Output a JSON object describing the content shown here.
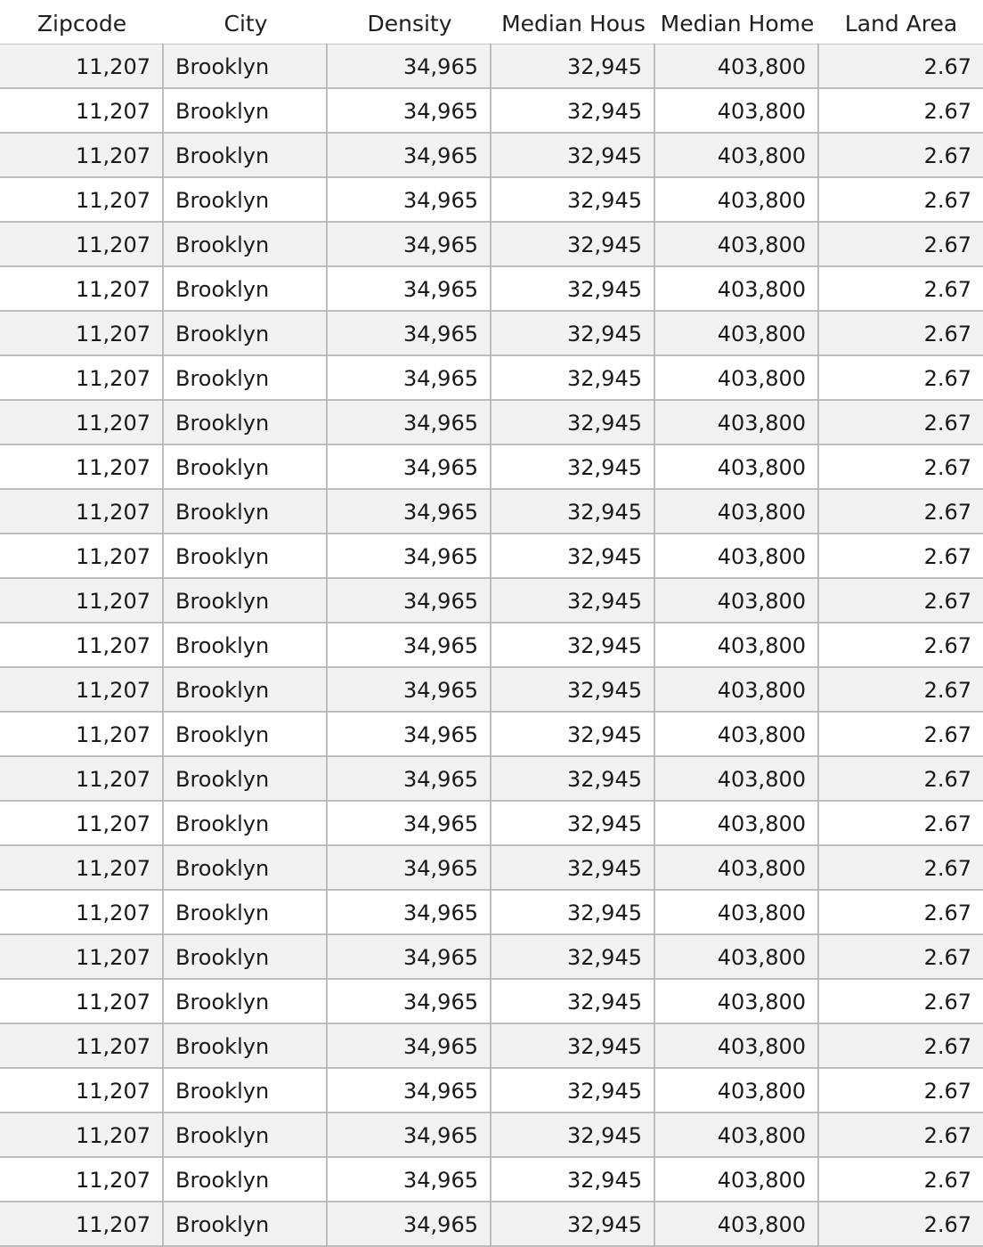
{
  "table": {
    "columns": [
      "Zipcode",
      "City",
      "Density",
      "Median Hous",
      "Median Home",
      "Land Area"
    ],
    "rows": [
      [
        "11,207",
        "Brooklyn",
        "34,965",
        "32,945",
        "403,800",
        "2.67"
      ],
      [
        "11,207",
        "Brooklyn",
        "34,965",
        "32,945",
        "403,800",
        "2.67"
      ],
      [
        "11,207",
        "Brooklyn",
        "34,965",
        "32,945",
        "403,800",
        "2.67"
      ],
      [
        "11,207",
        "Brooklyn",
        "34,965",
        "32,945",
        "403,800",
        "2.67"
      ],
      [
        "11,207",
        "Brooklyn",
        "34,965",
        "32,945",
        "403,800",
        "2.67"
      ],
      [
        "11,207",
        "Brooklyn",
        "34,965",
        "32,945",
        "403,800",
        "2.67"
      ],
      [
        "11,207",
        "Brooklyn",
        "34,965",
        "32,945",
        "403,800",
        "2.67"
      ],
      [
        "11,207",
        "Brooklyn",
        "34,965",
        "32,945",
        "403,800",
        "2.67"
      ],
      [
        "11,207",
        "Brooklyn",
        "34,965",
        "32,945",
        "403,800",
        "2.67"
      ],
      [
        "11,207",
        "Brooklyn",
        "34,965",
        "32,945",
        "403,800",
        "2.67"
      ],
      [
        "11,207",
        "Brooklyn",
        "34,965",
        "32,945",
        "403,800",
        "2.67"
      ],
      [
        "11,207",
        "Brooklyn",
        "34,965",
        "32,945",
        "403,800",
        "2.67"
      ],
      [
        "11,207",
        "Brooklyn",
        "34,965",
        "32,945",
        "403,800",
        "2.67"
      ],
      [
        "11,207",
        "Brooklyn",
        "34,965",
        "32,945",
        "403,800",
        "2.67"
      ],
      [
        "11,207",
        "Brooklyn",
        "34,965",
        "32,945",
        "403,800",
        "2.67"
      ],
      [
        "11,207",
        "Brooklyn",
        "34,965",
        "32,945",
        "403,800",
        "2.67"
      ],
      [
        "11,207",
        "Brooklyn",
        "34,965",
        "32,945",
        "403,800",
        "2.67"
      ],
      [
        "11,207",
        "Brooklyn",
        "34,965",
        "32,945",
        "403,800",
        "2.67"
      ],
      [
        "11,207",
        "Brooklyn",
        "34,965",
        "32,945",
        "403,800",
        "2.67"
      ],
      [
        "11,207",
        "Brooklyn",
        "34,965",
        "32,945",
        "403,800",
        "2.67"
      ],
      [
        "11,207",
        "Brooklyn",
        "34,965",
        "32,945",
        "403,800",
        "2.67"
      ],
      [
        "11,207",
        "Brooklyn",
        "34,965",
        "32,945",
        "403,800",
        "2.67"
      ],
      [
        "11,207",
        "Brooklyn",
        "34,965",
        "32,945",
        "403,800",
        "2.67"
      ],
      [
        "11,207",
        "Brooklyn",
        "34,965",
        "32,945",
        "403,800",
        "2.67"
      ],
      [
        "11,207",
        "Brooklyn",
        "34,965",
        "32,945",
        "403,800",
        "2.67"
      ],
      [
        "11,207",
        "Brooklyn",
        "34,965",
        "32,945",
        "403,800",
        "2.67"
      ],
      [
        "11,207",
        "Brooklyn",
        "34,965",
        "32,945",
        "403,800",
        "2.67"
      ]
    ]
  },
  "colors": {
    "row_alt": "#f2f2f2",
    "row": "#ffffff",
    "grid": "#bdbdbd"
  }
}
